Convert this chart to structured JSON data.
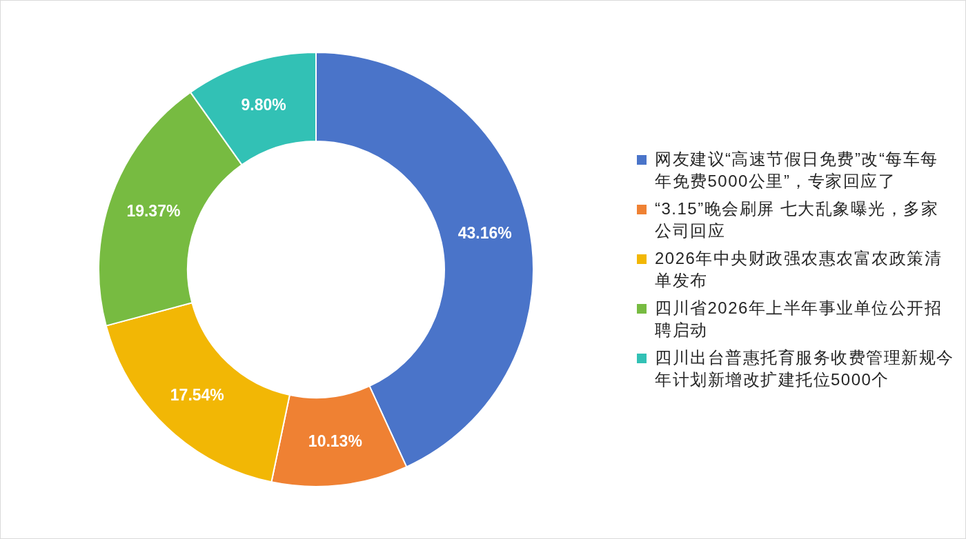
{
  "chart_data": {
    "type": "donut",
    "categories": [
      "网友建议“高速节假日免费”改“每车每年免费5000公里”，专家回应了",
      "“3.15”晚会刷屏 七大乱象曝光，多家公司回应",
      "2026年中央财政强农惠农富农政策清单发布",
      "四川省2026年上半年事业单位公开招聘启动",
      "四川出台普惠托育服务收费管理新规今年计划新增改扩建托位5000个"
    ],
    "values": [
      43.16,
      10.13,
      17.54,
      19.37,
      9.8
    ],
    "colors": [
      "#4a74c9",
      "#ef8133",
      "#f2b705",
      "#77bb41",
      "#32c1b5"
    ],
    "value_labels": [
      "43.16%",
      "10.13%",
      "17.54%",
      "19.37%",
      "9.80%"
    ],
    "legend": "right"
  }
}
